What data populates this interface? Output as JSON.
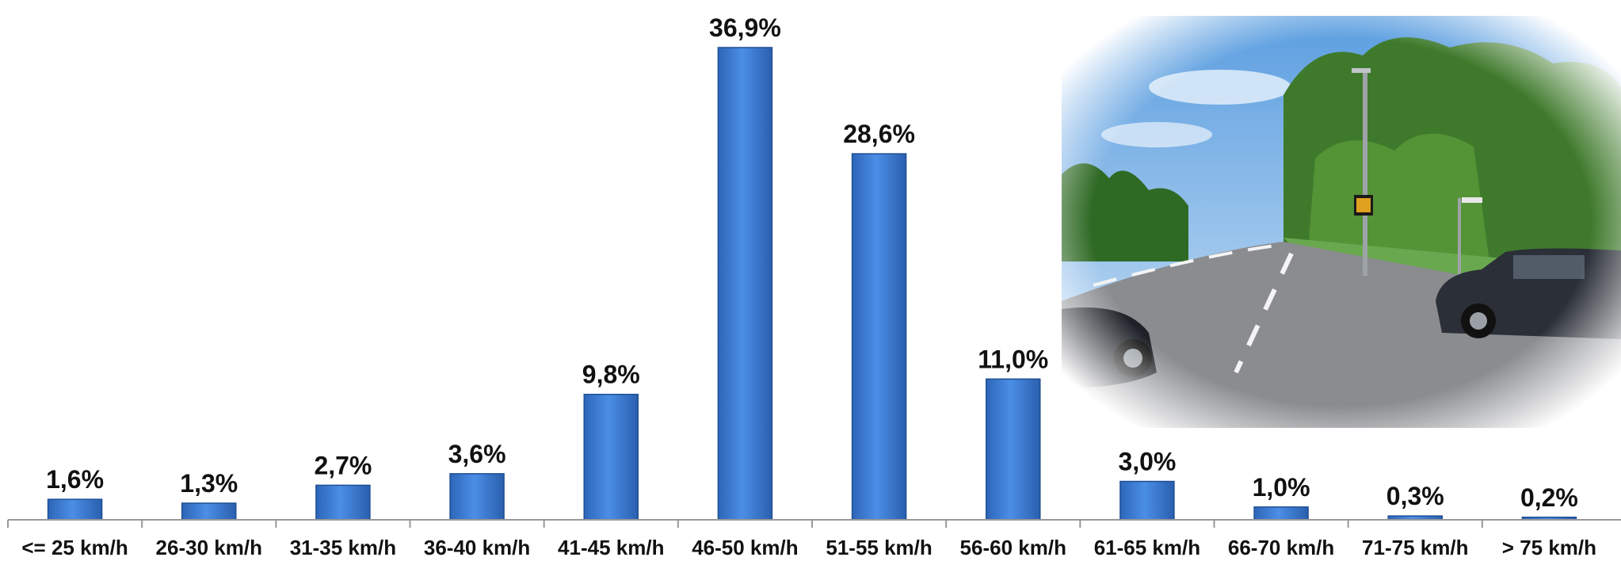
{
  "chart_data": {
    "type": "bar",
    "categories": [
      "<= 25 km/h",
      "26-30 km/h",
      "31-35 km/h",
      "36-40 km/h",
      "41-45 km/h",
      "46-50 km/h",
      "51-55 km/h",
      "56-60 km/h",
      "61-65 km/h",
      "66-70 km/h",
      "71-75 km/h",
      "> 75 km/h"
    ],
    "values": [
      1.6,
      1.3,
      2.7,
      3.6,
      9.8,
      36.9,
      28.6,
      11.0,
      3.0,
      1.0,
      0.3,
      0.2
    ],
    "data_labels": [
      "1,6%",
      "1,3%",
      "2,7%",
      "3,6%",
      "9,8%",
      "36,9%",
      "28,6%",
      "11,0%",
      "3,0%",
      "1,0%",
      "0,3%",
      "0,2%"
    ],
    "ylim": [
      0,
      36.9
    ],
    "grid": false,
    "bar_color": "#3b7dd8",
    "bar_edge_color": "#1f4f94"
  },
  "photo": {
    "icon": "street-scene-photo",
    "description_icon": "road-speed-display-photo"
  },
  "colors": {
    "sky": "#8fc0ea",
    "foliage": "#3f7a2c",
    "road": "#8a8c90",
    "car": "#2b2f38"
  }
}
